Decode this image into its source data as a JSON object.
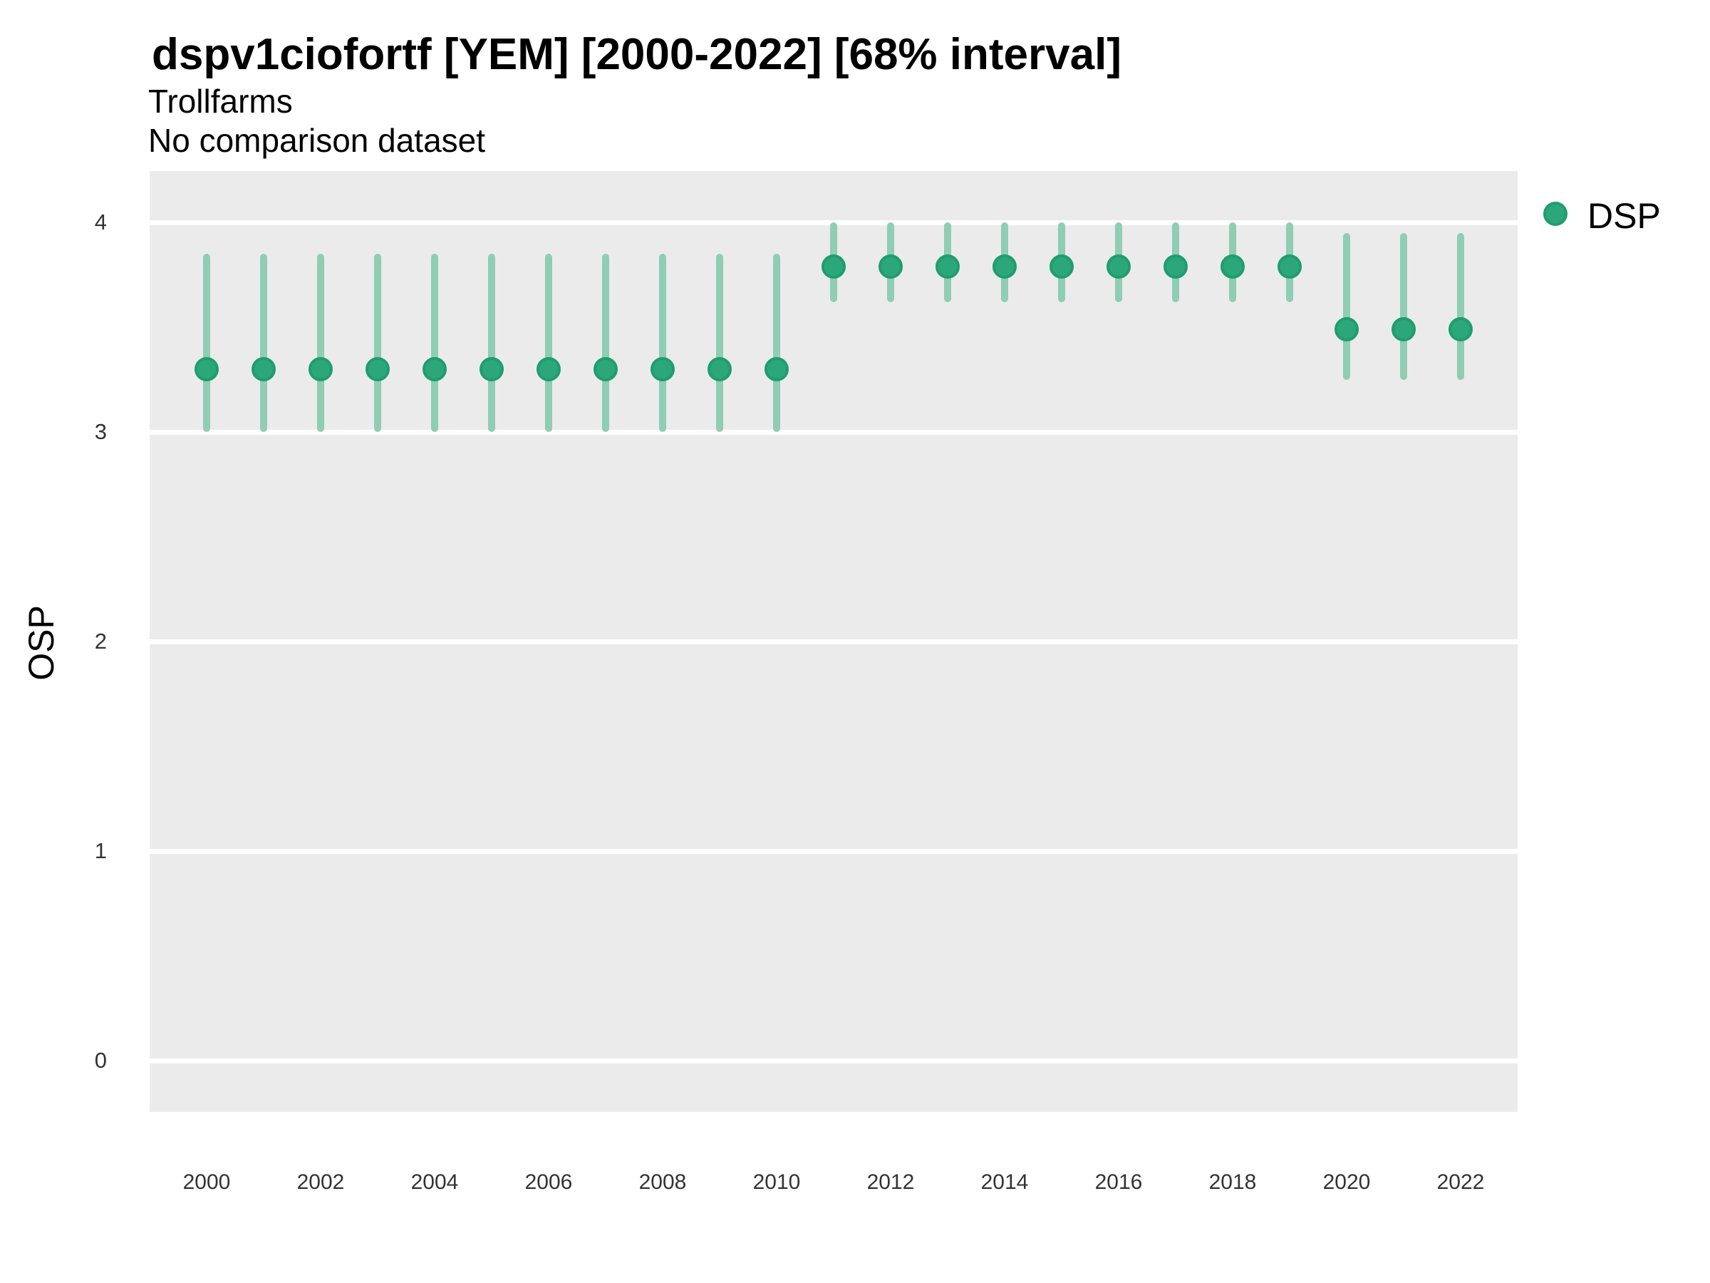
{
  "header": {
    "title": "dspv1ciofortf [YEM] [2000-2022] [68% interval]",
    "subtitle_line1": "Trollfarms",
    "subtitle_line2": "No comparison dataset"
  },
  "legend": {
    "position": "right",
    "items": [
      {
        "label": "DSP",
        "color": "#2CA77C",
        "edge_color": "#1F9D70"
      }
    ]
  },
  "colors": {
    "page_background": "#FFFFFF",
    "plot_background": "#EBEBEB",
    "gridline": "#FFFFFF",
    "axis_text": "#333333",
    "point_fill": "#2CA77C",
    "point_edge": "#1F9D70",
    "interval_bar": "#8FCDB5"
  },
  "chart_data": {
    "type": "pointrange",
    "title": "dspv1ciofortf [YEM] [2000-2022] [68% interval]",
    "subtitle": "Trollfarms / No comparison dataset",
    "interval_level": "68%",
    "xlabel": "",
    "ylabel": "OSP",
    "xlim": [
      1999,
      2023
    ],
    "ylim": [
      -0.245,
      4.245
    ],
    "x_tick_labels": [
      "2000",
      "2002",
      "2004",
      "2006",
      "2008",
      "2010",
      "2012",
      "2014",
      "2016",
      "2018",
      "2020",
      "2022"
    ],
    "y_tick_labels": [
      "0",
      "1",
      "2",
      "3",
      "4"
    ],
    "grid": "horizontal major gridlines, white on grey panel",
    "legend_position": "right",
    "series": [
      {
        "name": "DSP",
        "point_color": "#2CA77C",
        "point_edge_color": "#1F9D70",
        "range_color": "#8FCDB5",
        "x": [
          2000,
          2001,
          2002,
          2003,
          2004,
          2005,
          2006,
          2007,
          2008,
          2009,
          2010,
          2011,
          2012,
          2013,
          2014,
          2015,
          2016,
          2017,
          2018,
          2019,
          2020,
          2021,
          2022
        ],
        "est": [
          3.3,
          3.3,
          3.3,
          3.3,
          3.3,
          3.3,
          3.3,
          3.3,
          3.3,
          3.3,
          3.3,
          3.79,
          3.79,
          3.79,
          3.79,
          3.79,
          3.79,
          3.79,
          3.79,
          3.79,
          3.49,
          3.49,
          3.49
        ],
        "lo": [
          3.0,
          3.0,
          3.0,
          3.0,
          3.0,
          3.0,
          3.0,
          3.0,
          3.0,
          3.0,
          3.0,
          3.62,
          3.62,
          3.62,
          3.62,
          3.62,
          3.62,
          3.62,
          3.62,
          3.62,
          3.25,
          3.25,
          3.25
        ],
        "hi": [
          3.85,
          3.85,
          3.85,
          3.85,
          3.85,
          3.85,
          3.85,
          3.85,
          3.85,
          3.85,
          3.85,
          4.0,
          4.0,
          4.0,
          4.0,
          4.0,
          4.0,
          4.0,
          4.0,
          4.0,
          3.95,
          3.95,
          3.95
        ]
      }
    ]
  }
}
